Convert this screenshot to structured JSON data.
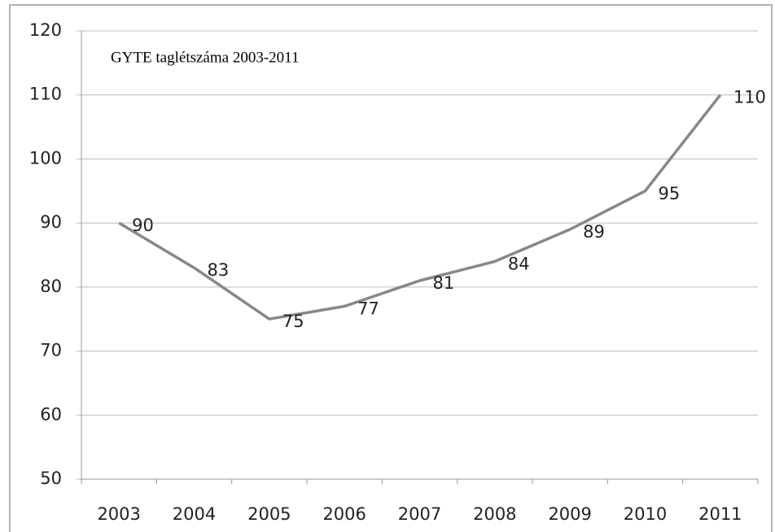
{
  "chart_data": {
    "type": "line",
    "title": "GYTE taglétszáma 2003-2011",
    "categories": [
      "2003",
      "2004",
      "2005",
      "2006",
      "2007",
      "2008",
      "2009",
      "2010",
      "2011"
    ],
    "values": [
      90,
      83,
      75,
      77,
      81,
      84,
      89,
      95,
      110
    ],
    "color": "#888888",
    "ylim": [
      50,
      120
    ],
    "yticks": [
      50,
      60,
      70,
      80,
      90,
      100,
      110,
      120
    ],
    "grid": true
  }
}
